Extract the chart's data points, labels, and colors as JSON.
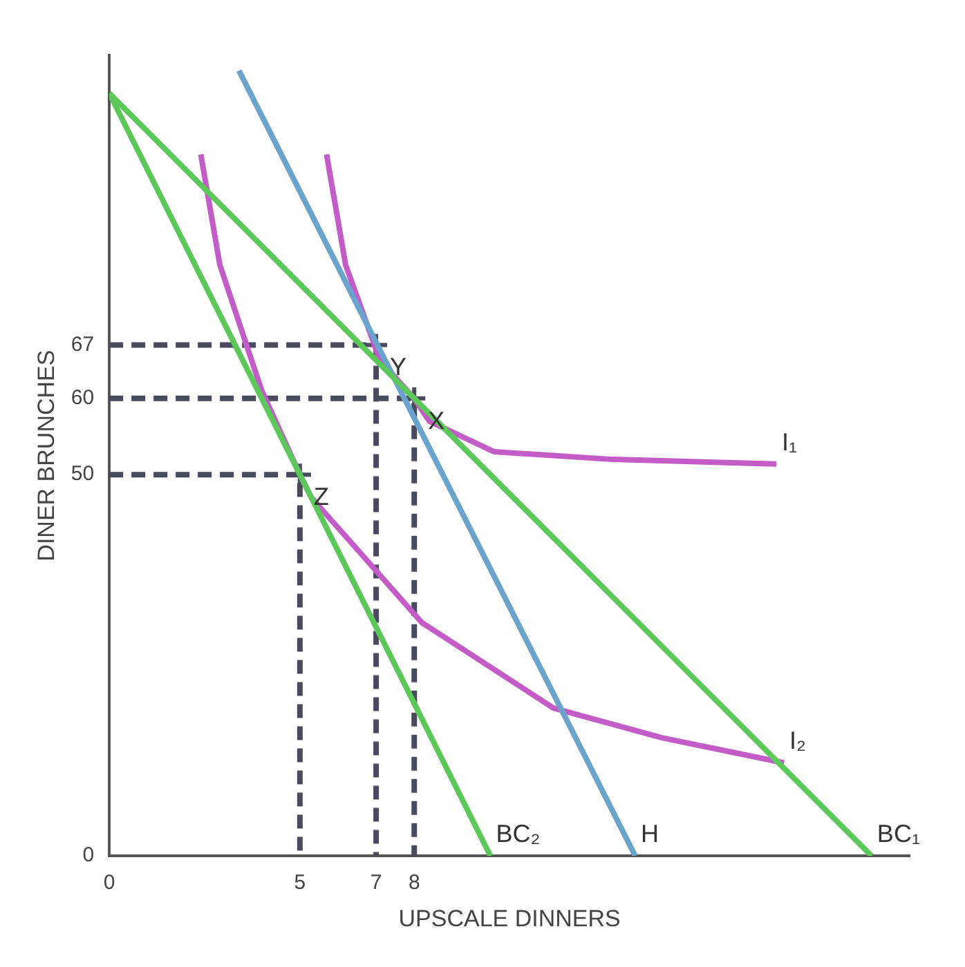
{
  "chart_data": {
    "type": "line",
    "xlabel": "UPSCALE DINNERS",
    "ylabel": "DINER BRUNCHES",
    "xlim": [
      0,
      21
    ],
    "ylim": [
      0,
      105
    ],
    "xticks": [
      0,
      5,
      7,
      8
    ],
    "yticks": [
      0,
      50,
      60,
      67
    ],
    "grid": false,
    "legend": false,
    "series": [
      {
        "name": "BC₁",
        "color": "#5cc85a",
        "x": [
          0,
          20
        ],
        "values": [
          100,
          0
        ]
      },
      {
        "name": "BC₂",
        "color": "#5cc85a",
        "x": [
          0,
          10
        ],
        "values": [
          100,
          0
        ]
      },
      {
        "name": "H",
        "color": "#6aa3cc",
        "x": [
          3.4,
          13.8
        ],
        "values": [
          103,
          0
        ]
      },
      {
        "name": "I₂",
        "color": "#c45cc8",
        "x": [
          2.4,
          2.9,
          4,
          5,
          5.3,
          8.2,
          11.65,
          14.5,
          17.7
        ],
        "values": [
          92,
          77.5,
          61,
          50,
          47,
          30.6,
          19.4,
          15.5,
          12.2
        ]
      },
      {
        "name": "I₁",
        "color": "#c45cc8",
        "x": [
          5.7,
          6.2,
          7.1,
          8,
          8.4,
          10.1,
          13.2,
          17.5
        ],
        "values": [
          92,
          77.5,
          65,
          60,
          57,
          53,
          52,
          51.4
        ]
      },
      {
        "color": "#4a4a5e",
        "line_style": "dashed",
        "x": [
          0,
          5,
          5
        ],
        "values": [
          50,
          50,
          0
        ]
      },
      {
        "color": "#4a4a5e",
        "line_style": "dashed",
        "x": [
          0,
          7,
          7
        ],
        "values": [
          67,
          67,
          0
        ]
      },
      {
        "color": "#4a4a5e",
        "line_style": "dashed",
        "x": [
          0,
          8,
          8
        ],
        "values": [
          60,
          60,
          0
        ]
      },
      {
        "type": "scatter",
        "marker": "cross",
        "color": "#4a4a5e",
        "x": [
          5,
          7,
          8
        ],
        "values": [
          50,
          67,
          60
        ]
      }
    ],
    "annotations": [
      {
        "text": "Z",
        "x": 5,
        "y": 50
      },
      {
        "text": "Y",
        "x": 7,
        "y": 67
      },
      {
        "text": "X",
        "x": 8,
        "y": 60
      }
    ]
  }
}
